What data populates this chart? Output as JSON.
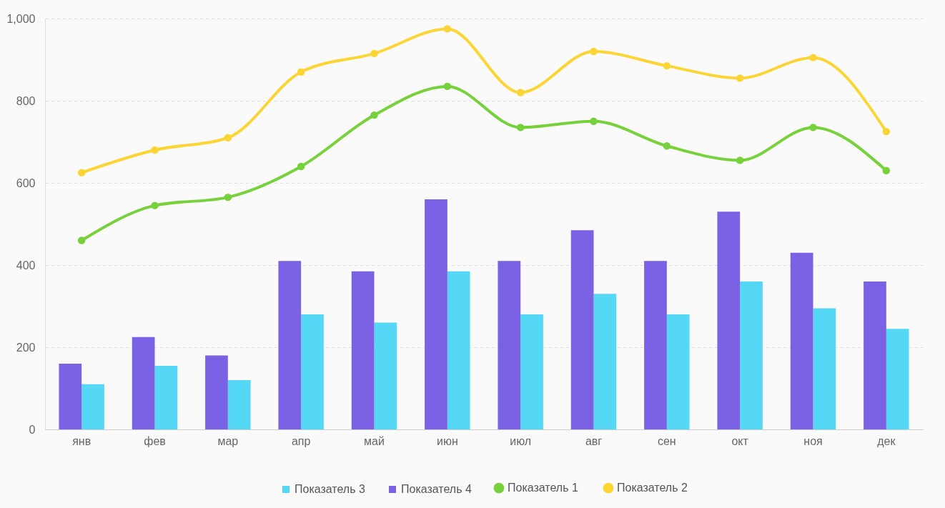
{
  "chart_data": {
    "type": "bar",
    "categories": [
      "янв",
      "фев",
      "мар",
      "апр",
      "май",
      "июн",
      "июл",
      "авг",
      "сен",
      "окт",
      "ноя",
      "дек"
    ],
    "series": [
      {
        "name": "Показатель 1",
        "type": "line",
        "color": "#77d13a",
        "values": [
          460,
          545,
          565,
          640,
          765,
          835,
          735,
          750,
          690,
          655,
          735,
          630
        ]
      },
      {
        "name": "Показатель 2",
        "type": "line",
        "color": "#fcd535",
        "values": [
          625,
          680,
          710,
          870,
          915,
          975,
          820,
          920,
          885,
          855,
          905,
          725
        ]
      },
      {
        "name": "Показатель 3",
        "type": "bar",
        "color": "#55d8f5",
        "values": [
          110,
          155,
          120,
          280,
          260,
          385,
          280,
          330,
          280,
          360,
          295,
          245
        ]
      },
      {
        "name": "Показатель 4",
        "type": "bar",
        "color": "#7b61e4",
        "values": [
          160,
          225,
          180,
          410,
          385,
          560,
          410,
          485,
          410,
          530,
          430,
          360
        ]
      }
    ],
    "ylim": [
      0,
      1000
    ],
    "yticks": [
      0,
      200,
      400,
      600,
      800,
      {
        "value": 1000,
        "label": "1,000"
      }
    ],
    "grid": "y",
    "legend": "bottom",
    "marker": "circle",
    "line_style": "solid"
  }
}
